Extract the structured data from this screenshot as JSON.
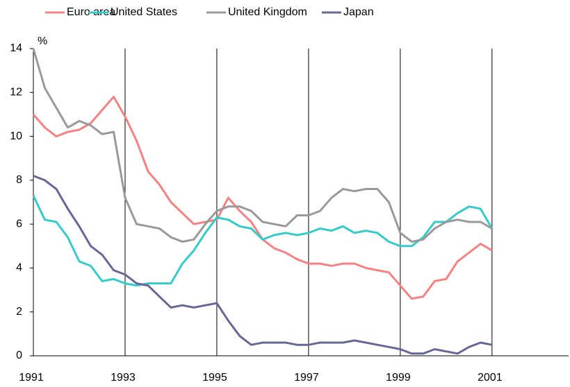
{
  "chart_data": {
    "type": "line",
    "y_label": "%",
    "x": [
      1991,
      1991.25,
      1991.5,
      1991.75,
      1992,
      1992.25,
      1992.5,
      1992.75,
      1993,
      1993.25,
      1993.5,
      1993.75,
      1994,
      1994.25,
      1994.5,
      1994.75,
      1995,
      1995.25,
      1995.5,
      1995.75,
      1996,
      1996.25,
      1996.5,
      1996.75,
      1997,
      1997.25,
      1997.5,
      1997.75,
      1998,
      1998.25,
      1998.5,
      1998.75,
      1999,
      1999.25,
      1999.5,
      1999.75,
      2000,
      2000.25,
      2000.5,
      2000.75,
      2001
    ],
    "series": [
      {
        "name": "Euro area",
        "color": "#f88080",
        "values": [
          11.0,
          10.4,
          10.0,
          10.2,
          10.3,
          10.6,
          11.2,
          11.8,
          10.9,
          9.8,
          8.4,
          7.8,
          7.0,
          6.5,
          6.0,
          6.1,
          6.2,
          7.2,
          6.6,
          6.1,
          5.3,
          4.9,
          4.7,
          4.4,
          4.2,
          4.2,
          4.1,
          4.2,
          4.2,
          4.0,
          3.9,
          3.8,
          3.2,
          2.6,
          2.7,
          3.4,
          3.5,
          4.3,
          4.7,
          5.1,
          4.8
        ]
      },
      {
        "name": "United States",
        "color": "#33cccc",
        "values": [
          7.3,
          6.2,
          6.1,
          5.4,
          4.3,
          4.1,
          3.4,
          3.5,
          3.3,
          3.2,
          3.3,
          3.3,
          3.3,
          4.2,
          4.8,
          5.6,
          6.3,
          6.2,
          5.9,
          5.8,
          5.3,
          5.5,
          5.6,
          5.5,
          5.6,
          5.8,
          5.7,
          5.9,
          5.6,
          5.7,
          5.6,
          5.2,
          5.0,
          5.0,
          5.4,
          6.1,
          6.1,
          6.5,
          6.8,
          6.7,
          5.8
        ]
      },
      {
        "name": "United Kingdom",
        "color": "#999999",
        "values": [
          14.0,
          12.2,
          11.3,
          10.4,
          10.7,
          10.5,
          10.1,
          10.2,
          7.2,
          6.0,
          5.9,
          5.8,
          5.4,
          5.2,
          5.3,
          6.0,
          6.6,
          6.8,
          6.8,
          6.6,
          6.1,
          6.0,
          5.9,
          6.4,
          6.4,
          6.6,
          7.2,
          7.6,
          7.5,
          7.6,
          7.6,
          7.0,
          5.6,
          5.2,
          5.3,
          5.8,
          6.1,
          6.2,
          6.1,
          6.1,
          5.8
        ]
      },
      {
        "name": "Japan",
        "color": "#666699",
        "values": [
          8.2,
          8.0,
          7.6,
          6.7,
          5.9,
          5.0,
          4.6,
          3.9,
          3.7,
          3.3,
          3.2,
          2.7,
          2.2,
          2.3,
          2.2,
          2.3,
          2.4,
          1.6,
          0.9,
          0.5,
          0.6,
          0.6,
          0.6,
          0.5,
          0.5,
          0.6,
          0.6,
          0.6,
          0.7,
          0.6,
          0.5,
          0.4,
          0.3,
          0.1,
          0.1,
          0.3,
          0.2,
          0.1,
          0.4,
          0.6,
          0.5
        ]
      }
    ],
    "xlim": [
      1991,
      2002.67
    ],
    "xticks": [
      1991,
      1993,
      1995,
      1997,
      1999,
      2001
    ],
    "ylim": [
      0,
      14
    ],
    "yticks": [
      0,
      2,
      4,
      6,
      8,
      10,
      12,
      14
    ],
    "grid": "x",
    "legend": "top"
  }
}
